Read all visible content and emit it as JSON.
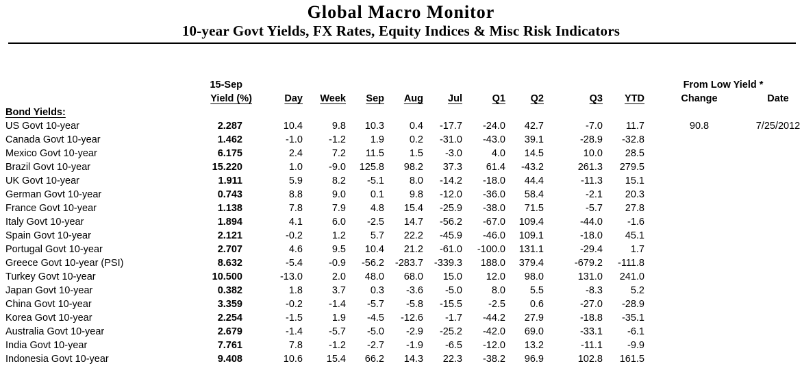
{
  "title": "Global Macro Monitor",
  "subtitle": "10-year Govt Yields, FX Rates, Equity Indices & Misc Risk Indicators",
  "table": {
    "header": {
      "asof_label": "15-Sep",
      "yield_label": "Yield (%)",
      "period_columns": [
        "Day",
        "Week",
        "Sep",
        "Aug",
        "Jul",
        "Q1",
        "Q2",
        "Q3",
        "YTD"
      ],
      "from_low_label": "From Low Yield *",
      "change_label": "Change",
      "date_label": "Date"
    },
    "section_label": "Bond Yields:",
    "rows": [
      {
        "label": "US Govt 10-year",
        "yield": "2.287",
        "periods": [
          "10.4",
          "9.8",
          "10.3",
          "0.4",
          "-17.7",
          "-24.0",
          "42.7",
          "-7.0",
          "11.7"
        ],
        "change": "90.8",
        "date": "7/25/2012"
      },
      {
        "label": "Canada Govt 10-year",
        "yield": "1.462",
        "periods": [
          "-1.0",
          "-1.2",
          "1.9",
          "0.2",
          "-31.0",
          "-43.0",
          "39.1",
          "-28.9",
          "-32.8"
        ],
        "change": "",
        "date": ""
      },
      {
        "label": "Mexico Govt 10-year",
        "yield": "6.175",
        "periods": [
          "2.4",
          "7.2",
          "11.5",
          "1.5",
          "-3.0",
          "4.0",
          "14.5",
          "10.0",
          "28.5"
        ],
        "change": "",
        "date": ""
      },
      {
        "label": "Brazil Govt 10-year",
        "yield": "15.220",
        "periods": [
          "1.0",
          "-9.0",
          "125.8",
          "98.2",
          "37.3",
          "61.4",
          "-43.2",
          "261.3",
          "279.5"
        ],
        "change": "",
        "date": ""
      },
      {
        "label": "UK Govt 10-year",
        "yield": "1.911",
        "periods": [
          "5.9",
          "8.2",
          "-5.1",
          "8.0",
          "-14.2",
          "-18.0",
          "44.4",
          "-11.3",
          "15.1"
        ],
        "change": "",
        "date": ""
      },
      {
        "label": "German Govt 10-year",
        "yield": "0.743",
        "periods": [
          "8.8",
          "9.0",
          "0.1",
          "9.8",
          "-12.0",
          "-36.0",
          "58.4",
          "-2.1",
          "20.3"
        ],
        "change": "",
        "date": ""
      },
      {
        "label": "France Govt 10-year",
        "yield": "1.138",
        "periods": [
          "7.8",
          "7.9",
          "4.8",
          "15.4",
          "-25.9",
          "-38.0",
          "71.5",
          "-5.7",
          "27.8"
        ],
        "change": "",
        "date": ""
      },
      {
        "label": "Italy Govt 10-year",
        "yield": "1.894",
        "periods": [
          "4.1",
          "6.0",
          "-2.5",
          "14.7",
          "-56.2",
          "-67.0",
          "109.4",
          "-44.0",
          "-1.6"
        ],
        "change": "",
        "date": ""
      },
      {
        "label": "Spain Govt 10-year",
        "yield": "2.121",
        "periods": [
          "-0.2",
          "1.2",
          "5.7",
          "22.2",
          "-45.9",
          "-46.0",
          "109.1",
          "-18.0",
          "45.1"
        ],
        "change": "",
        "date": ""
      },
      {
        "label": "Portugal Govt 10-year",
        "yield": "2.707",
        "periods": [
          "4.6",
          "9.5",
          "10.4",
          "21.2",
          "-61.0",
          "-100.0",
          "131.1",
          "-29.4",
          "1.7"
        ],
        "change": "",
        "date": ""
      },
      {
        "label": "Greece Govt 10-year (PSI)",
        "yield": "8.632",
        "periods": [
          "-5.4",
          "-0.9",
          "-56.2",
          "-283.7",
          "-339.3",
          "188.0",
          "379.4",
          "-679.2",
          "-111.8"
        ],
        "change": "",
        "date": ""
      },
      {
        "label": "Turkey Govt 10-year",
        "yield": "10.500",
        "periods": [
          "-13.0",
          "2.0",
          "48.0",
          "68.0",
          "15.0",
          "12.0",
          "98.0",
          "131.0",
          "241.0"
        ],
        "change": "",
        "date": ""
      },
      {
        "label": "Japan Govt 10-year",
        "yield": "0.382",
        "periods": [
          "1.8",
          "3.7",
          "0.3",
          "-3.6",
          "-5.0",
          "8.0",
          "5.5",
          "-8.3",
          "5.2"
        ],
        "change": "",
        "date": ""
      },
      {
        "label": "China Govt 10-year",
        "yield": "3.359",
        "periods": [
          "-0.2",
          "-1.4",
          "-5.7",
          "-5.8",
          "-15.5",
          "-2.5",
          "0.6",
          "-27.0",
          "-28.9"
        ],
        "change": "",
        "date": ""
      },
      {
        "label": "Korea Govt 10-year",
        "yield": "2.254",
        "periods": [
          "-1.5",
          "1.9",
          "-4.5",
          "-12.6",
          "-1.7",
          "-44.2",
          "27.9",
          "-18.8",
          "-35.1"
        ],
        "change": "",
        "date": ""
      },
      {
        "label": "Australia Govt 10-year",
        "yield": "2.679",
        "periods": [
          "-1.4",
          "-5.7",
          "-5.0",
          "-2.9",
          "-25.2",
          "-42.0",
          "69.0",
          "-33.1",
          "-6.1"
        ],
        "change": "",
        "date": ""
      },
      {
        "label": "India Govt 10-year",
        "yield": "7.761",
        "periods": [
          "7.8",
          "-1.2",
          "-2.7",
          "-1.9",
          "-6.5",
          "-12.0",
          "13.2",
          "-11.1",
          "-9.9"
        ],
        "change": "",
        "date": ""
      },
      {
        "label": "Indonesia Govt 10-year",
        "yield": "9.408",
        "periods": [
          "10.6",
          "15.4",
          "66.2",
          "14.3",
          "22.3",
          "-38.2",
          "96.9",
          "102.8",
          "161.5"
        ],
        "change": "",
        "date": ""
      }
    ]
  }
}
